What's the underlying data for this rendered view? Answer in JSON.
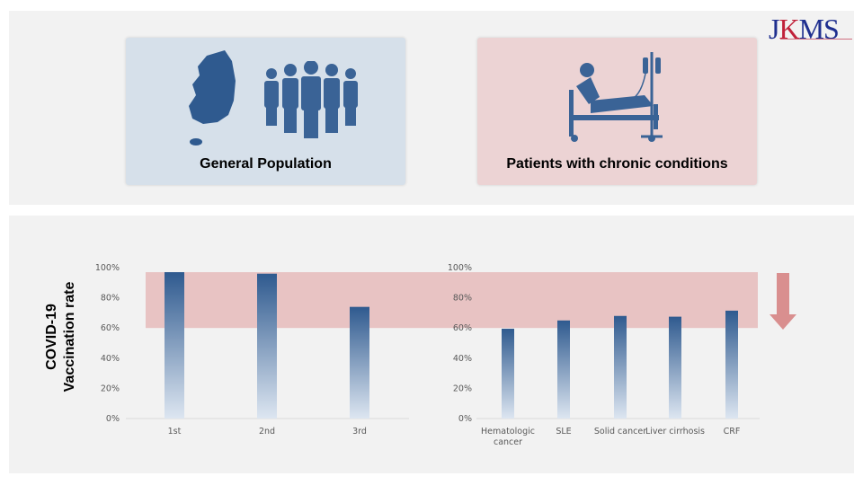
{
  "logo": {
    "text_j": "J",
    "text_k": "K",
    "text_rest": "MS"
  },
  "cards": [
    {
      "label": "General Population",
      "color": "#d6e0ea",
      "icons": [
        "korea-map-icon",
        "people-group-icon"
      ]
    },
    {
      "label": "Patients with chronic conditions",
      "color": "#ecd3d4",
      "icons": [
        "hospital-bed-patient-iv-icon"
      ]
    }
  ],
  "y_axis_label": [
    "COVID-19",
    "Vaccination rate"
  ],
  "colors": {
    "bar_top": "#2f5a8f",
    "bar_bottom": "#dde6f1",
    "band": "#e8c3c3",
    "arrow": "#d98f8f"
  },
  "chart_data": [
    {
      "type": "bar",
      "categories": [
        "1st",
        "2nd",
        "3rd"
      ],
      "values": [
        97,
        96,
        74
      ],
      "ylim": [
        0,
        100
      ],
      "yticks": [
        "0%",
        "20%",
        "40%",
        "60%",
        "80%",
        "100%"
      ],
      "highlight_band": [
        60,
        97
      ]
    },
    {
      "type": "bar",
      "categories": [
        "Hematologic cancer",
        "SLE",
        "Solid cancer",
        "Liver cirrhosis",
        "CRF"
      ],
      "values": [
        59.5,
        65,
        68,
        67.5,
        71.5
      ],
      "ylim": [
        0,
        100
      ],
      "yticks": [
        "0%",
        "20%",
        "40%",
        "60%",
        "80%",
        "100%"
      ],
      "highlight_band": [
        60,
        97
      ],
      "annotation": "down-arrow"
    }
  ]
}
